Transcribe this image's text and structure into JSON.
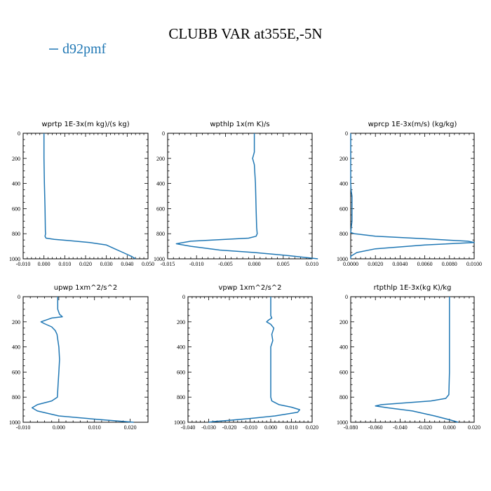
{
  "figure": {
    "title": "CLUBB VAR at355E,-5N",
    "legend": {
      "label": "d92pmf",
      "color": "#1f77b4"
    }
  },
  "chart_data": [
    {
      "type": "line",
      "title": "wprtp  1E-3x(m kg)/(s kg)",
      "xlim": [
        -0.01,
        0.05
      ],
      "ylim": [
        0,
        1000
      ],
      "y_inverted": true,
      "xticks": [
        -0.01,
        0.0,
        0.01,
        0.02,
        0.03,
        0.04,
        0.05
      ],
      "xtick_labels": [
        "-0.010",
        "0.000",
        "0.010",
        "0.020",
        "0.030",
        "0.040",
        "0.050"
      ],
      "yticks": [
        0,
        200,
        400,
        600,
        800,
        1000
      ],
      "ytick_labels": [
        "0",
        "200",
        "400",
        "600",
        "800",
        "1000"
      ],
      "series": [
        {
          "name": "d92pmf",
          "color": "#1f77b4",
          "x": [
            0.0,
            0.0,
            0.0002,
            0.0005,
            0.0007,
            0.0008,
            0.0005,
            0.001,
            0.005,
            0.012,
            0.022,
            0.03,
            0.034,
            0.038,
            0.042,
            0.044
          ],
          "y": [
            0,
            200,
            400,
            600,
            780,
            800,
            820,
            835,
            845,
            855,
            870,
            890,
            920,
            950,
            980,
            1000
          ]
        }
      ]
    },
    {
      "type": "line",
      "title": "wpthlp  1x(m K)/s",
      "xlim": [
        -0.015,
        0.01
      ],
      "ylim": [
        0,
        1000
      ],
      "y_inverted": true,
      "xticks": [
        -0.015,
        -0.01,
        -0.005,
        0.0,
        0.005,
        0.01
      ],
      "xtick_labels": [
        "-0.015",
        "-0.010",
        "-0.005",
        "0.000",
        "0.005",
        "0.010"
      ],
      "yticks": [
        0,
        200,
        400,
        600,
        800,
        1000
      ],
      "ytick_labels": [
        "0",
        "200",
        "400",
        "600",
        "800",
        "1000"
      ],
      "series": [
        {
          "name": "d92pmf",
          "color": "#1f77b4",
          "x": [
            0.0,
            0.0,
            -0.0003,
            0.0,
            0.0002,
            0.0003,
            0.0004,
            0.0005,
            0.0003,
            -0.001,
            -0.005,
            -0.011,
            -0.0135,
            -0.011,
            -0.006,
            0.0,
            0.006,
            0.011
          ],
          "y": [
            0,
            150,
            200,
            250,
            400,
            600,
            750,
            800,
            820,
            835,
            845,
            860,
            880,
            900,
            930,
            950,
            975,
            1000
          ]
        }
      ]
    },
    {
      "type": "line",
      "title": "wprcp  1E-3x(m/s) (kg/kg)",
      "xlim": [
        0.0,
        0.01
      ],
      "ylim": [
        0,
        1000
      ],
      "y_inverted": true,
      "xticks": [
        0.0,
        0.002,
        0.004,
        0.006,
        0.008,
        0.01
      ],
      "xtick_labels": [
        "0.0000",
        "0.0020",
        "0.0040",
        "0.0060",
        "0.0080",
        "0.0100"
      ],
      "yticks": [
        0,
        200,
        400,
        600,
        800,
        1000
      ],
      "ytick_labels": [
        "0",
        "200",
        "400",
        "600",
        "800",
        "1000"
      ],
      "series": [
        {
          "name": "d92pmf",
          "color": "#1f77b4",
          "x": [
            0.0,
            0.0,
            3e-05,
            0.0001,
            0.0001,
            0.0001,
            0.0,
            0.0003,
            0.002,
            0.006,
            0.0095,
            0.01,
            0.006,
            0.002,
            0.0005,
            0.0,
            0.0
          ],
          "y": [
            0,
            400,
            450,
            500,
            600,
            700,
            790,
            800,
            820,
            840,
            860,
            870,
            890,
            920,
            950,
            980,
            1000
          ]
        }
      ]
    },
    {
      "type": "line",
      "title": "upwp  1xm^2/s^2",
      "xlim": [
        -0.01,
        0.025
      ],
      "ylim": [
        0,
        1000
      ],
      "y_inverted": true,
      "xticks": [
        -0.01,
        0.0,
        0.01,
        0.02
      ],
      "xtick_labels": [
        "-0.010",
        "0.000",
        "0.010",
        "0.020"
      ],
      "yticks": [
        0,
        200,
        400,
        600,
        800,
        1000
      ],
      "ytick_labels": [
        "0",
        "200",
        "400",
        "600",
        "800",
        "1000"
      ],
      "series": [
        {
          "name": "d92pmf",
          "color": "#1f77b4",
          "x": [
            -0.0003,
            -0.0003,
            0.0002,
            0.001,
            -0.002,
            -0.005,
            -0.004,
            -0.002,
            -0.001,
            -0.0005,
            0.0,
            0.0002,
            0.0,
            -0.0002,
            -0.0004,
            -0.002,
            -0.006,
            -0.0075,
            -0.006,
            0.0,
            0.012,
            0.021
          ],
          "y": [
            0,
            100,
            140,
            160,
            170,
            200,
            215,
            240,
            270,
            300,
            400,
            500,
            600,
            700,
            800,
            830,
            860,
            885,
            910,
            950,
            980,
            1000
          ]
        }
      ]
    },
    {
      "type": "line",
      "title": "vpwp  1xm^2/s^2",
      "xlim": [
        -0.04,
        0.02
      ],
      "ylim": [
        0,
        1000
      ],
      "y_inverted": true,
      "xticks": [
        -0.04,
        -0.03,
        -0.02,
        -0.01,
        0.0,
        0.01,
        0.02
      ],
      "xtick_labels": [
        "-0.040",
        "-0.030",
        "-0.020",
        "-0.010",
        "0.000",
        "0.010",
        "0.020"
      ],
      "yticks": [
        0,
        200,
        400,
        600,
        800,
        1000
      ],
      "ytick_labels": [
        "0",
        "200",
        "400",
        "600",
        "800",
        "1000"
      ],
      "series": [
        {
          "name": "d92pmf",
          "color": "#1f77b4",
          "x": [
            0.0,
            0.0,
            0.0005,
            -0.001,
            -0.002,
            0.0,
            0.0015,
            0.0005,
            0.001,
            0.0,
            0.0,
            0.0005,
            0.004,
            0.01,
            0.014,
            0.013,
            0.002,
            -0.01,
            -0.02,
            -0.028,
            -0.03
          ],
          "y": [
            0,
            150,
            170,
            185,
            200,
            220,
            250,
            300,
            350,
            400,
            800,
            830,
            860,
            880,
            900,
            920,
            950,
            970,
            985,
            995,
            1000
          ]
        }
      ]
    },
    {
      "type": "line",
      "title": "rtpthlp  1E-3x(kg K)/kg",
      "xlim": [
        -0.08,
        0.02
      ],
      "ylim": [
        0,
        1000
      ],
      "y_inverted": true,
      "xticks": [
        -0.08,
        -0.06,
        -0.04,
        -0.02,
        0.0,
        0.02
      ],
      "xtick_labels": [
        "-0.080",
        "-0.060",
        "-0.040",
        "-0.020",
        "0.000",
        "0.020"
      ],
      "yticks": [
        0,
        200,
        400,
        600,
        800,
        1000
      ],
      "ytick_labels": [
        "0",
        "200",
        "400",
        "600",
        "800",
        "1000"
      ],
      "series": [
        {
          "name": "d92pmf",
          "color": "#1f77b4",
          "x": [
            0.0,
            0.0,
            -0.0005,
            -0.003,
            -0.015,
            -0.035,
            -0.055,
            -0.06,
            -0.05,
            -0.03,
            -0.012,
            0.0,
            0.007
          ],
          "y": [
            0,
            600,
            780,
            810,
            830,
            845,
            860,
            870,
            885,
            910,
            950,
            980,
            1000
          ]
        }
      ]
    }
  ]
}
